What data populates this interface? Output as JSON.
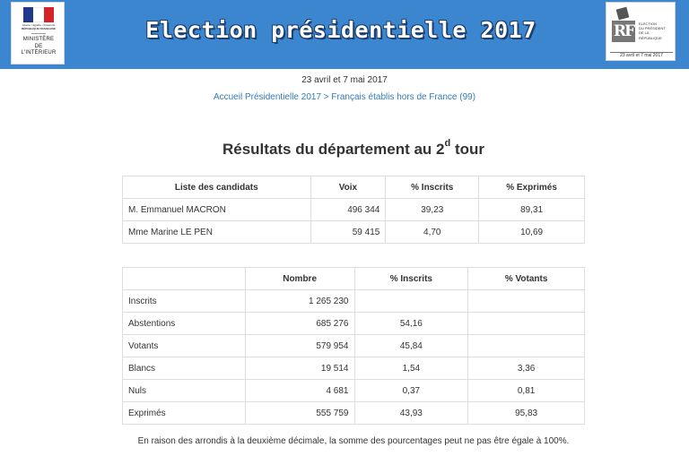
{
  "header": {
    "title": "Election présidentielle 2017",
    "ministry_logo": {
      "motto_line1": "Liberté • Égalité • Fraternité",
      "motto_line2": "RÉPUBLIQUE FRANÇAISE",
      "ministry_lines": [
        "MINISTÈRE",
        "DE",
        "L'INTÉRIEUR"
      ]
    },
    "election_logo": {
      "initials": "RF",
      "text_lines": [
        "ELECTION",
        "DU PRÉSIDENT",
        "DE LA",
        "RÉPUBLIQUE"
      ],
      "dates": "23 avril et 7 mai 2017"
    }
  },
  "dates_line": "23 avril et 7 mai 2017",
  "breadcrumb": {
    "home": "Accueil Présidentielle 2017",
    "separator": ">",
    "current": "Français établis hors de France (99)"
  },
  "heading": {
    "text": "Résultats du département au 2",
    "superscript": "d",
    "suffix": " tour"
  },
  "candidates_table": {
    "headers": [
      "Liste des candidats",
      "Voix",
      "% Inscrits",
      "% Exprimés"
    ],
    "rows": [
      {
        "name": "M. Emmanuel MACRON",
        "voix": "496 344",
        "inscrits": "39,23",
        "exprimes": "89,31"
      },
      {
        "name": "Mme Marine LE PEN",
        "voix": "59 415",
        "inscrits": "4,70",
        "exprimes": "10,69"
      }
    ]
  },
  "participation_table": {
    "headers": [
      "",
      "Nombre",
      "% Inscrits",
      "% Votants"
    ],
    "rows": [
      {
        "label": "Inscrits",
        "nombre": "1 265 230",
        "inscrits": "",
        "votants": ""
      },
      {
        "label": "Abstentions",
        "nombre": "685 276",
        "inscrits": "54,16",
        "votants": ""
      },
      {
        "label": "Votants",
        "nombre": "579 954",
        "inscrits": "45,84",
        "votants": ""
      },
      {
        "label": "Blancs",
        "nombre": "19 514",
        "inscrits": "1,54",
        "votants": "3,36"
      },
      {
        "label": "Nuls",
        "nombre": "4 681",
        "inscrits": "0,37",
        "votants": "0,81"
      },
      {
        "label": "Exprimés",
        "nombre": "555 759",
        "inscrits": "43,93",
        "votants": "95,83"
      }
    ]
  },
  "footnote": "En raison des arrondis à la deuxième décimale, la somme des pourcentages peut ne pas être égale à 100%.",
  "colors": {
    "banner": "#3c86d0",
    "link": "#337ab7",
    "border": "#dddddd"
  }
}
